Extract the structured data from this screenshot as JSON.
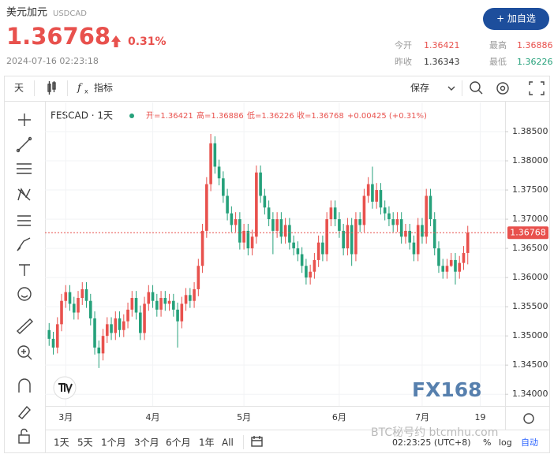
{
  "header": {
    "name": "美元加元",
    "symbol": "USDCAD",
    "price": "1.36768",
    "change": "0.31%",
    "datetime": "2024-07-16 02:23:18",
    "button": "+ 加自选",
    "stats": [
      {
        "label": "今开",
        "value": "1.36421"
      },
      {
        "label": "最高",
        "value": "1.36886"
      },
      {
        "label": "昨收",
        "value": "1.36343"
      },
      {
        "label": "最低",
        "value": "1.36226"
      }
    ]
  },
  "toolbar": {
    "interval": "天",
    "indicators": "指标",
    "save": "保存"
  },
  "chart_data": {
    "type": "candlestick",
    "legend": {
      "symbol": "FESCAD · 1天",
      "open": "开=1.36421",
      "high": "高=1.36886",
      "low": "低=1.36226",
      "close": "收=1.36768",
      "change": "+0.00425 (+0.31%)"
    },
    "up_color": "#e8514d",
    "down_color": "#26a17b",
    "open": [
      1.351,
      1.3495,
      1.348,
      1.352,
      1.356,
      1.3575,
      1.3555,
      1.354,
      1.3565,
      1.358,
      1.356,
      1.353,
      1.348,
      1.347,
      1.35,
      1.352,
      1.3505,
      1.353,
      1.351,
      1.3525,
      1.3545,
      1.3565,
      1.354,
      1.3505,
      1.3555,
      1.3575,
      1.356,
      1.3545,
      1.3565,
      1.3555,
      1.356,
      1.3545,
      1.3525,
      1.3555,
      1.357,
      1.356,
      1.358,
      1.362,
      1.368,
      1.376,
      1.383,
      1.379,
      1.377,
      1.374,
      1.371,
      1.369,
      1.37,
      1.366,
      1.368,
      1.365,
      1.367,
      1.378,
      1.374,
      1.372,
      1.37,
      1.368,
      1.37,
      1.367,
      1.369,
      1.366,
      1.365,
      1.364,
      1.362,
      1.36,
      1.361,
      1.363,
      1.366,
      1.364,
      1.37,
      1.372,
      1.37,
      1.368,
      1.365,
      1.369,
      1.364,
      1.37,
      1.369,
      1.374,
      1.376,
      1.373,
      1.375,
      1.372,
      1.371,
      1.37,
      1.369,
      1.37,
      1.367,
      1.368,
      1.366,
      1.364,
      1.369,
      1.367,
      1.374,
      1.37,
      1.365,
      1.362,
      1.361,
      1.362,
      1.363,
      1.361,
      1.3625,
      1.36421
    ],
    "high": [
      1.3522,
      1.3507,
      1.3532,
      1.3572,
      1.3587,
      1.3587,
      1.3567,
      1.3577,
      1.3592,
      1.3592,
      1.3572,
      1.3542,
      1.3492,
      1.3512,
      1.3532,
      1.3532,
      1.3542,
      1.3542,
      1.3537,
      1.3557,
      1.3577,
      1.3577,
      1.3552,
      1.3567,
      1.3587,
      1.3587,
      1.3572,
      1.3577,
      1.3577,
      1.3572,
      1.3572,
      1.3557,
      1.3567,
      1.3582,
      1.3582,
      1.3592,
      1.3632,
      1.3692,
      1.3772,
      1.3846,
      1.3842,
      1.3802,
      1.3782,
      1.3752,
      1.3722,
      1.3712,
      1.3712,
      1.3692,
      1.3692,
      1.3682,
      1.3792,
      1.3792,
      1.3752,
      1.3732,
      1.3712,
      1.3712,
      1.3712,
      1.3702,
      1.3702,
      1.3672,
      1.3662,
      1.3652,
      1.3632,
      1.3622,
      1.3642,
      1.3672,
      1.3672,
      1.3712,
      1.3732,
      1.3732,
      1.3712,
      1.3692,
      1.3702,
      1.3702,
      1.3712,
      1.3712,
      1.3752,
      1.3772,
      1.379,
      1.3762,
      1.3762,
      1.3732,
      1.3722,
      1.3712,
      1.3712,
      1.3712,
      1.3692,
      1.3692,
      1.3672,
      1.3702,
      1.3702,
      1.3752,
      1.3752,
      1.3712,
      1.3662,
      1.3632,
      1.3632,
      1.3642,
      1.3642,
      1.3637,
      1.3654,
      1.36886
    ],
    "low": [
      1.3483,
      1.3468,
      1.347,
      1.3508,
      1.3548,
      1.3543,
      1.3528,
      1.3528,
      1.3553,
      1.3548,
      1.3518,
      1.3468,
      1.3445,
      1.3458,
      1.3488,
      1.3493,
      1.3493,
      1.3498,
      1.3498,
      1.3513,
      1.3533,
      1.3528,
      1.3493,
      1.3493,
      1.3543,
      1.3548,
      1.3533,
      1.3533,
      1.3543,
      1.3543,
      1.3533,
      1.348,
      1.3513,
      1.3543,
      1.3548,
      1.3548,
      1.3568,
      1.3608,
      1.3668,
      1.3748,
      1.3778,
      1.3758,
      1.3728,
      1.3698,
      1.3678,
      1.3678,
      1.3648,
      1.3648,
      1.3638,
      1.3638,
      1.3658,
      1.3728,
      1.3708,
      1.3688,
      1.364,
      1.3668,
      1.3658,
      1.3658,
      1.3648,
      1.3638,
      1.3628,
      1.3608,
      1.3588,
      1.3588,
      1.3598,
      1.3618,
      1.3628,
      1.3628,
      1.3688,
      1.3688,
      1.3668,
      1.3638,
      1.3638,
      1.362,
      1.3628,
      1.3678,
      1.3678,
      1.3728,
      1.3718,
      1.3718,
      1.3708,
      1.3698,
      1.3688,
      1.3678,
      1.3678,
      1.3658,
      1.3658,
      1.3648,
      1.3628,
      1.3628,
      1.3658,
      1.3658,
      1.3688,
      1.3638,
      1.3608,
      1.3598,
      1.3598,
      1.3618,
      1.3588,
      1.3598,
      1.3613,
      1.36226
    ],
    "close": [
      1.3495,
      1.348,
      1.352,
      1.356,
      1.3575,
      1.3555,
      1.354,
      1.3565,
      1.358,
      1.356,
      1.353,
      1.348,
      1.347,
      1.35,
      1.352,
      1.3505,
      1.353,
      1.351,
      1.3525,
      1.3545,
      1.3565,
      1.354,
      1.3505,
      1.3555,
      1.3575,
      1.356,
      1.3545,
      1.3565,
      1.3555,
      1.356,
      1.3545,
      1.3525,
      1.3555,
      1.357,
      1.356,
      1.358,
      1.362,
      1.368,
      1.376,
      1.383,
      1.379,
      1.377,
      1.374,
      1.371,
      1.369,
      1.37,
      1.366,
      1.368,
      1.365,
      1.367,
      1.378,
      1.374,
      1.372,
      1.37,
      1.368,
      1.37,
      1.367,
      1.369,
      1.366,
      1.365,
      1.364,
      1.362,
      1.36,
      1.361,
      1.363,
      1.366,
      1.364,
      1.37,
      1.372,
      1.37,
      1.368,
      1.365,
      1.369,
      1.364,
      1.37,
      1.369,
      1.374,
      1.376,
      1.373,
      1.375,
      1.372,
      1.371,
      1.37,
      1.369,
      1.37,
      1.367,
      1.368,
      1.366,
      1.364,
      1.369,
      1.367,
      1.374,
      1.37,
      1.365,
      1.362,
      1.361,
      1.362,
      1.363,
      1.361,
      1.3625,
      1.3642,
      1.36768
    ],
    "xlim": [
      -1,
      110
    ],
    "xticks": [
      {
        "value": 4,
        "label": "3月"
      },
      {
        "value": 25,
        "label": "4月"
      },
      {
        "value": 47,
        "label": "5月"
      },
      {
        "value": 70,
        "label": "6月"
      },
      {
        "value": 90,
        "label": "7月"
      },
      {
        "value": 104,
        "label": "19"
      }
    ],
    "ylim": [
      1.338,
      1.39
    ],
    "yticks": [
      {
        "value": 1.34,
        "label": "1.34000"
      },
      {
        "value": 1.345,
        "label": "1.34500"
      },
      {
        "value": 1.35,
        "label": "1.35000"
      },
      {
        "value": 1.355,
        "label": "1.35500"
      },
      {
        "value": 1.36,
        "label": "1.36000"
      },
      {
        "value": 1.365,
        "label": "1.36500"
      },
      {
        "value": 1.37,
        "label": "1.37000"
      },
      {
        "value": 1.375,
        "label": "1.37500"
      },
      {
        "value": 1.38,
        "label": "1.38000"
      },
      {
        "value": 1.385,
        "label": "1.38500"
      }
    ],
    "grid": true
  },
  "bottom": {
    "ranges": [
      "1天",
      "5天",
      "1个月",
      "3个月",
      "6个月",
      "1年",
      "All"
    ],
    "time": "02:23:25 (UTC+8)",
    "percent": "%",
    "log": "log",
    "auto": "自动"
  },
  "watermark": {
    "logo": "FX168",
    "site": "BTC秘号约 btcmhu.com"
  }
}
